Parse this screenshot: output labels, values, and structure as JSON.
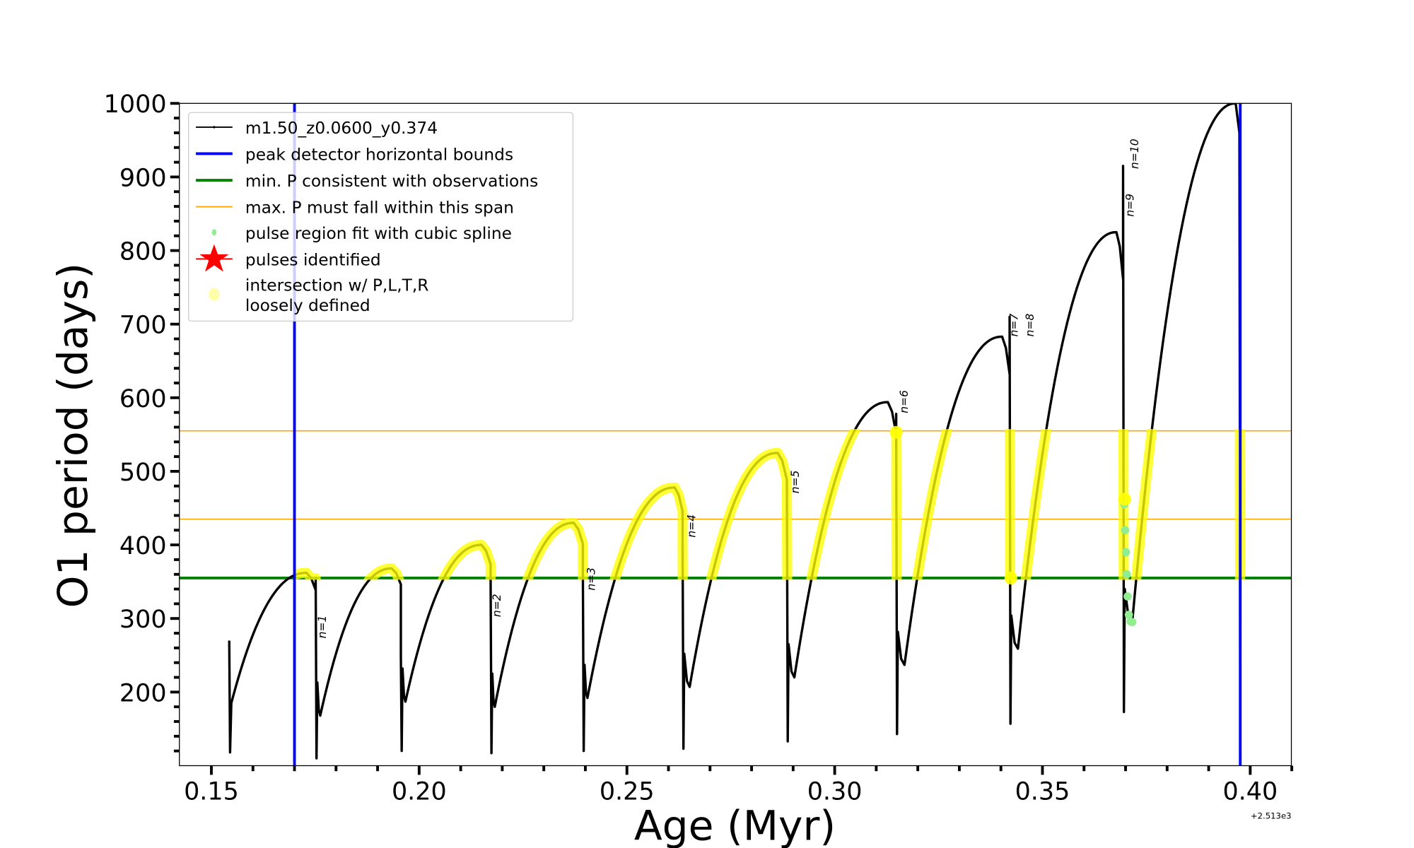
{
  "chart_data": {
    "type": "line",
    "title": "",
    "xlabel": "Age (Myr)",
    "ylabel": "O1 period (days)",
    "x_offset_label": "+2.513e3",
    "xlim": [
      0.1423,
      0.4099
    ],
    "ylim": [
      100,
      1000
    ],
    "xticks": [
      0.15,
      0.2,
      0.25,
      0.3,
      0.35,
      0.4
    ],
    "xtick_labels": [
      "0.15",
      "0.20",
      "0.25",
      "0.30",
      "0.35",
      "0.40"
    ],
    "yticks": [
      200,
      300,
      400,
      500,
      600,
      700,
      800,
      900,
      1000
    ],
    "ytick_labels": [
      "200",
      "300",
      "400",
      "500",
      "600",
      "700",
      "800",
      "900",
      "1000"
    ],
    "grid": false,
    "legend_position": "top-left",
    "legend": [
      {
        "label": "m1.50_z0.0600_y0.374",
        "kind": "line-marker",
        "color": "#000000"
      },
      {
        "label": "peak detector horizontal bounds",
        "kind": "line",
        "color": "#0000ff"
      },
      {
        "label": "min. P consistent with observations",
        "kind": "line",
        "color": "#008000"
      },
      {
        "label": "max. P must fall within this span",
        "kind": "line",
        "color": "#ffa500"
      },
      {
        "label": "pulse region fit with cubic spline",
        "kind": "dot",
        "color": "#90ee90"
      },
      {
        "label": "pulses identified",
        "kind": "star",
        "color": "#ff0000"
      },
      {
        "label": "intersection w/ P,L,T,R",
        "label2": "loosely defined",
        "kind": "dot",
        "color": "#ffffaa"
      }
    ],
    "vlines": [
      0.17,
      0.3976
    ],
    "hline_min_period": 355,
    "hlines_max_span": [
      435,
      555
    ],
    "series_start": [
      [
        0.1543,
        270
      ],
      [
        0.1545,
        118
      ],
      [
        0.1548,
        185
      ]
    ],
    "pulses": [
      {
        "age": 0.1751,
        "pre_peak_age": 0.1729,
        "pre_peak": 362,
        "spike_top": 355,
        "spike_bottom": 110,
        "recovery_age": 0.1762,
        "recovery_min": 168
      },
      {
        "age": 0.1956,
        "pre_peak_age": 0.1934,
        "pre_peak": 368,
        "spike_top": 248,
        "spike_bottom": 120,
        "recovery_age": 0.1967,
        "recovery_min": 187
      },
      {
        "age": 0.2172,
        "pre_peak_age": 0.215,
        "pre_peak": 400,
        "spike_top": 355,
        "spike_bottom": 117,
        "recovery_age": 0.2182,
        "recovery_min": 180
      },
      {
        "age": 0.2394,
        "pre_peak_age": 0.2372,
        "pre_peak": 430,
        "spike_top": 362,
        "spike_bottom": 120,
        "recovery_age": 0.2405,
        "recovery_min": 192
      },
      {
        "age": 0.2634,
        "pre_peak_age": 0.2615,
        "pre_peak": 478,
        "spike_top": 400,
        "spike_bottom": 123,
        "recovery_age": 0.2651,
        "recovery_min": 207
      },
      {
        "age": 0.2885,
        "pre_peak_age": 0.2863,
        "pre_peak": 525,
        "spike_top": 480,
        "spike_bottom": 133,
        "recovery_age": 0.2903,
        "recovery_min": 220
      },
      {
        "age": 0.3148,
        "pre_peak_age": 0.3128,
        "pre_peak": 594,
        "spike_top": 578,
        "spike_bottom": 143,
        "recovery_age": 0.3168,
        "recovery_min": 237
      },
      {
        "age": 0.3421,
        "pre_peak_age": 0.3403,
        "pre_peak": 683,
        "spike_top": 710,
        "spike_bottom": 157,
        "recovery_age": 0.3441,
        "recovery_min": 259
      },
      {
        "age": 0.3694,
        "pre_peak_age": 0.3678,
        "pre_peak": 825,
        "spike_top": 915,
        "spike_bottom": 173,
        "recovery_age": 0.3716,
        "recovery_min": 295
      }
    ],
    "series_end": [
      [
        0.3965,
        1000
      ],
      [
        0.3974,
        960
      ],
      [
        0.3976,
        195
      ]
    ],
    "spline_fit_points": [
      [
        0.3697,
        455
      ],
      [
        0.3699,
        420
      ],
      [
        0.3701,
        390
      ],
      [
        0.3703,
        360
      ],
      [
        0.3705,
        330
      ],
      [
        0.3708,
        305
      ],
      [
        0.3712,
        296
      ],
      [
        0.3716,
        295
      ]
    ],
    "intersection_large_points": [
      [
        0.3148,
        553
      ],
      [
        0.3424,
        355
      ],
      [
        0.3698,
        462
      ]
    ],
    "annotations": [
      {
        "text": "n=1",
        "x": 0.1767,
        "y": 273
      },
      {
        "text": "n=2",
        "x": 0.2187,
        "y": 302
      },
      {
        "text": "n=3",
        "x": 0.2414,
        "y": 338
      },
      {
        "text": "n=4",
        "x": 0.2656,
        "y": 410
      },
      {
        "text": "n=5",
        "x": 0.2905,
        "y": 470
      },
      {
        "text": "n=6",
        "x": 0.3167,
        "y": 579
      },
      {
        "text": "n=7",
        "x": 0.3432,
        "y": 683
      },
      {
        "text": "n=8",
        "x": 0.3437,
        "y": 683
      },
      {
        "text": "n=9",
        "x": 0.3711,
        "y": 846
      },
      {
        "text": "n=10",
        "x": 0.3722,
        "y": 911
      }
    ]
  }
}
